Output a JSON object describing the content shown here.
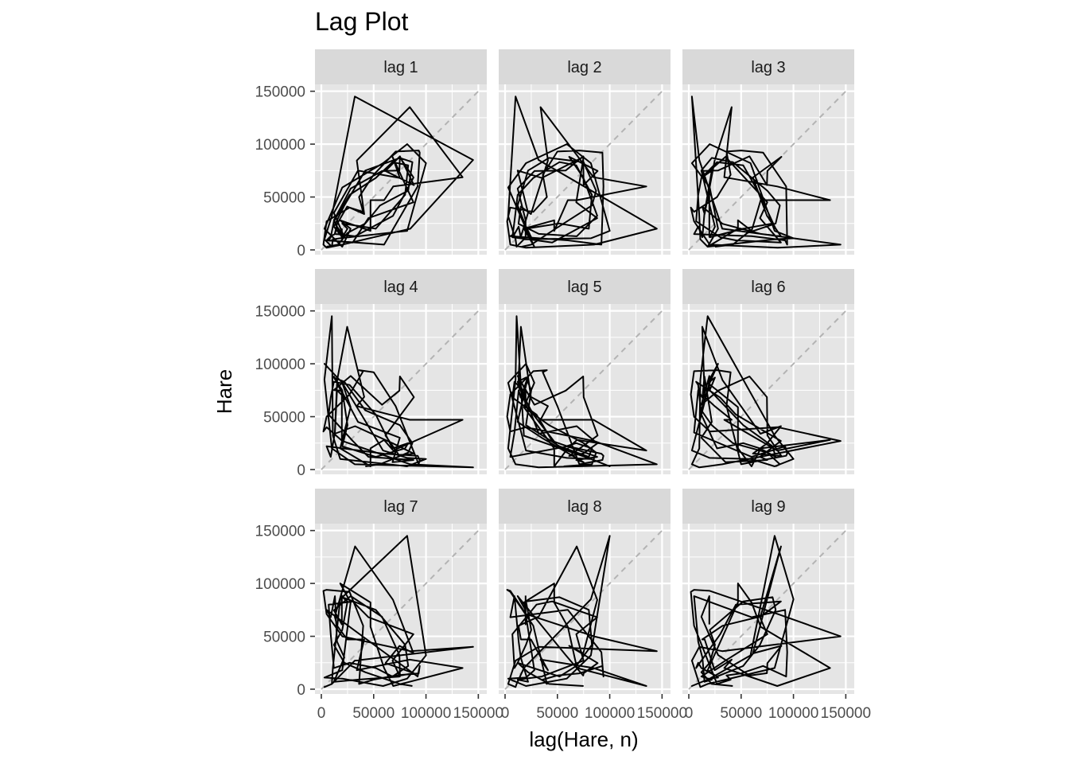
{
  "chart_data": {
    "type": "line",
    "title": "Lag Plot",
    "xlabel": "lag(Hare, n)",
    "ylabel": "Hare",
    "xlim": [
      0,
      152000
    ],
    "ylim": [
      0,
      152000
    ],
    "x_ticks": [
      0,
      50000,
      100000,
      150000
    ],
    "y_ticks": [
      0,
      50000,
      100000,
      150000
    ],
    "x_tick_labels": [
      "0",
      "50000",
      "100000",
      "150000"
    ],
    "y_tick_labels": [
      "0",
      "50000",
      "100000",
      "150000"
    ],
    "grid": true,
    "reference_line": "y = x",
    "colors": {
      "panel_bg": "#e5e5e5",
      "grid": "#ffffff",
      "strip_bg": "#d9d9d9",
      "path": "#000000",
      "reference": "#b3b3b3"
    },
    "hare_series": [
      19580,
      19600,
      19610,
      11990,
      28040,
      58000,
      74600,
      75090,
      88480,
      61280,
      74670,
      88060,
      68510,
      32190,
      12860,
      15160,
      24700,
      41000,
      33890,
      84500,
      135000,
      68690,
      60000,
      47000,
      47000,
      18000,
      28000,
      20000,
      3000,
      20000,
      59000,
      82000,
      100000,
      82000,
      18000,
      11000,
      10000,
      3000,
      10000,
      32000,
      145000,
      85000,
      20000,
      5000,
      2000,
      5000,
      27000,
      40000,
      36000,
      50000,
      71000,
      93000,
      94000,
      92000,
      60000,
      5000,
      9000,
      13000,
      15000,
      22000,
      12000,
      35000,
      75000,
      68000,
      88000,
      45000,
      30000,
      7000,
      9000,
      12000,
      27000,
      52000,
      68000,
      83000,
      80000,
      52000,
      20000,
      25000,
      20000,
      12000,
      22000,
      42000,
      75000,
      87000,
      83000,
      56000,
      42000,
      25000,
      16000,
      5000,
      3000
    ],
    "panels": [
      {
        "label": "lag 1",
        "lag": 1
      },
      {
        "label": "lag 2",
        "lag": 2
      },
      {
        "label": "lag 3",
        "lag": 3
      },
      {
        "label": "lag 4",
        "lag": 4
      },
      {
        "label": "lag 5",
        "lag": 5
      },
      {
        "label": "lag 6",
        "lag": 6
      },
      {
        "label": "lag 7",
        "lag": 7
      },
      {
        "label": "lag 8",
        "lag": 8
      },
      {
        "label": "lag 9",
        "lag": 9
      }
    ]
  }
}
